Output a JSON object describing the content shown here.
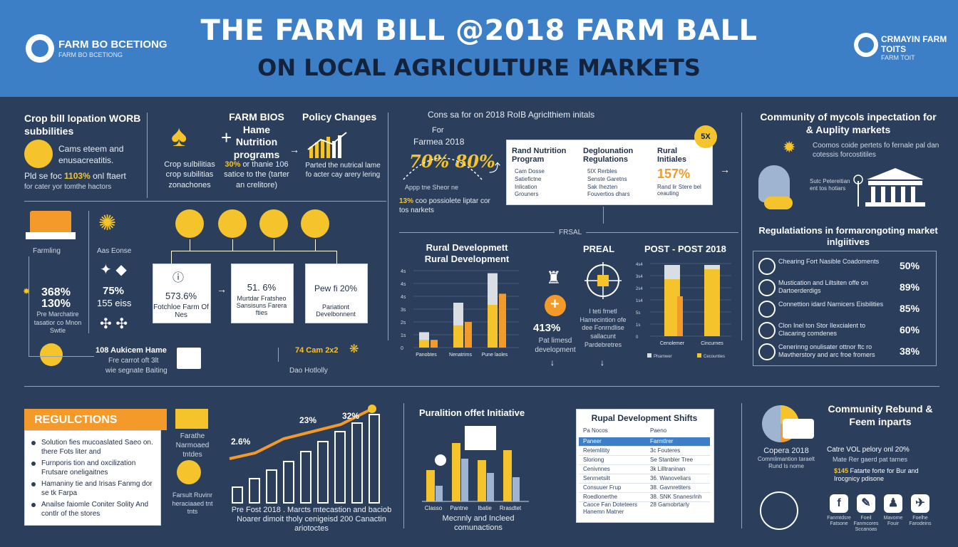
{
  "header": {
    "title_line1": "THE FARM BILL @2018 FARM BALL",
    "title_line2": "ON LOCAL AGRICULTURE MARKETS",
    "logo_left": "FARM BO BCETIONG",
    "logo_left_sub": "FARM BO BCETIONG",
    "logo_right": "CRMAYIN FARM TOITS",
    "logo_right_sub": "FARM TOIT"
  },
  "section1": {
    "heading": "Crop bill lopation WORB subbilities",
    "text": "Cams eteem and enusacreatitis.",
    "stat_prefix": "Pld se foc",
    "stat": "1103%",
    "stat_suffix": "onl ftaert",
    "stat_line2": "for cater yor tomthe hactors"
  },
  "section2": {
    "caption1": "Crop sulbilitias crop subilitias zonachones",
    "heading": "FARM BIOS Hame Nutrition programs",
    "caption2_pre": "",
    "caption2_pct": "30%",
    "caption2": "or thanie 106 satice to the (tarter an crelitore)"
  },
  "section3": {
    "heading": "Policy Changes",
    "caption": "Parted the nutrical lame fo acter cay arery lering"
  },
  "center": {
    "heading": "Cons sa for on 2018 RoIB Agriclthiem initals",
    "for_label": "For",
    "farms_label": "Farmea 2018",
    "big_stat": "70% 80%",
    "side_note": "Appp tne Sheor ne",
    "note_pct": "13%",
    "note": "coo possiolete liptar cor tos narkets",
    "badge": "5X",
    "col1_title": "Rand Nutrition Program",
    "col1_items": [
      "Cam Dosse",
      "Satiefictne",
      "Inlication",
      "Grouners"
    ],
    "col2_title": "Deglounation Regulations",
    "col2_items": [
      "5IX Rerbles",
      "Senste Garetns",
      "Sak Ihezten",
      "Fouvertios dhars"
    ],
    "col3_title": "Rural Initiales",
    "col3_stat": "157%",
    "col3_note": "Rand lir Stere bel ceauting"
  },
  "community": {
    "heading": "Community of mycols inpectation for & Auplity markets",
    "text": "Coomos coide pertets fo fernale pal dan cotessis forcostitiles",
    "bldg_note": "Sutc Petereitian ent tos hotiars"
  },
  "regulations_list": {
    "heading": "Regulatiations in formarongoting market inlgiitives",
    "items": [
      {
        "label": "Chearing Fort Nasible Coadoments",
        "pct": "50%"
      },
      {
        "label": "Mustication and Liltsiten offe on Dartoerderdigs",
        "pct": "89%"
      },
      {
        "label": "Connettion idard Narnicers Eisbilities",
        "pct": "85%"
      },
      {
        "label": "Clon Inel ton Stor Ilexcialent to Clacaring comdenes",
        "pct": "60%"
      },
      {
        "label": "Cenerinng onulisater ottnor ftc ro Mavtherstory and arc froe fromers",
        "pct": "38%"
      }
    ]
  },
  "middle_left": {
    "side_label": "Farmling",
    "stat1": "368%",
    "stat2": "130%",
    "side_text": "Pre Marchatire tasatior co Mnon Swtle",
    "arc_label": "Aas Eonse",
    "pct1": "75%",
    "pct2": "155 eiss",
    "box1_stat": "573.6%",
    "box1_text": "Fotchloe Farm Of Nes",
    "box2_stat": "51. 6%",
    "box2_text": "Murtdar Fratsheo Sansisuns Farera fties",
    "box3_stat": "Pew fi 20%",
    "box3_text": "Pariationt Develbonnent",
    "bottom_text": "108 Aukicem Hame",
    "bottom_line2": "Fre carrot oft 3lt",
    "bottom_line3": "wie segnate Baiting",
    "mini_stat": "74 Cam 2x2",
    "mini_note": "Dao Hotlolly"
  },
  "rural_chart": {
    "title": "Rural Developmett Rural Development",
    "y_ticks": [
      "4s",
      "4s",
      "4s",
      "3s",
      "2s",
      "1s",
      "0"
    ],
    "categories": [
      "Panobtes",
      "Nenatrims",
      "Pune laoles"
    ]
  },
  "prfal": {
    "title": "PREAL",
    "label_center": "FRSAL",
    "stat": "413%",
    "stat_text": "Pat limesd development",
    "desc": "I teti frnetl Hamecintion ofe dee Fonrndlise sallacunt Pardebretres"
  },
  "post_chart": {
    "title": "POST - POST 2018",
    "y_ticks": [
      "4s4",
      "3s4",
      "2s4",
      "1s4",
      "5s",
      "1s",
      "0"
    ],
    "categories": [
      "Cenolemer",
      "Cincurnes"
    ],
    "legend": [
      "Pharnwer",
      "Cecounties"
    ]
  },
  "regulctions": {
    "banner": "REGULCTIONS",
    "items": [
      "Solution fies mucoaslated Saeo on. there Fots liter and",
      "Furnporis tion and oxcilization Frutsare oneligaitnes",
      "Hamaniny tie and Irisas Fanmg dor se tk Farpa",
      "Anailse faiomle Coniter Solity And contlr of the stores"
    ],
    "truck_label": "Farathe Narmoaed tntdes",
    "barn_label": "Farsult Ruvinr heraciaaed tnt tnts"
  },
  "growth_chart": {
    "labels": [
      "2.6%",
      "23%",
      "32%"
    ],
    "caption": "Pre Fost 2018 . Marcts mtecastion and baciob Noarer dimoit tholy cenigeisd 200 Canactin ariotoctes"
  },
  "pur_chart": {
    "title": "Puralition offet Initiative",
    "categories": [
      "Classo",
      "Pantne",
      "Ibatie",
      "Rrasdtet"
    ],
    "caption": "Mecnnly and Incleed comunactions"
  },
  "shifts_table": {
    "title": "Rupal Development Shifts",
    "col1": "Pa Nocos",
    "col2": "Paeno",
    "rows": [
      [
        "Paneer",
        "Farmtlrer"
      ],
      [
        "Retemlitity",
        "3c Fouteres"
      ],
      [
        "Sloriong",
        "Se Stanbler Tree"
      ],
      [
        "Cenivnnes",
        "3k Lilltraninan"
      ],
      [
        "Senrnetsilt",
        "36. Wanoveliars"
      ],
      [
        "Consuuer Frup",
        "38. Gavnretiters"
      ],
      [
        "Roedlonerthe",
        "38. SNK Snanesrlnh"
      ]
    ],
    "footer_left": "Caoce Fan Doteteers Hanemn Matner",
    "footer_right": "28 Gamobrtarly"
  },
  "community_rebund": {
    "heading": "Community Rebund & Feem inparts",
    "stat_label": "Copera 2018",
    "stat_text": "Commlimantion taraelt Rund Is nome",
    "note1": "Catre VOL pelory onl 20%",
    "note1b": "Mate Rer gaerd pat tarnes",
    "note2_pct": "$145",
    "note2": "Fatarte forte for Bur and Irocgnicy pdisone",
    "socials": [
      {
        "glyph": "f",
        "label": "Fanmtdsre Fatsone"
      },
      {
        "glyph": "✎",
        "label": "Foeil Fanmcores Sccanoas"
      },
      {
        "glyph": "♟",
        "label": "Mavome Fouir"
      },
      {
        "glyph": "✈",
        "label": "Foelhe Farodeins"
      }
    ]
  },
  "colors": {
    "bg": "#2b3f5c",
    "header": "#3c7fc6",
    "yellow": "#f5c32c",
    "orange": "#f39a2b",
    "gray_bar": "#d9dde4"
  }
}
